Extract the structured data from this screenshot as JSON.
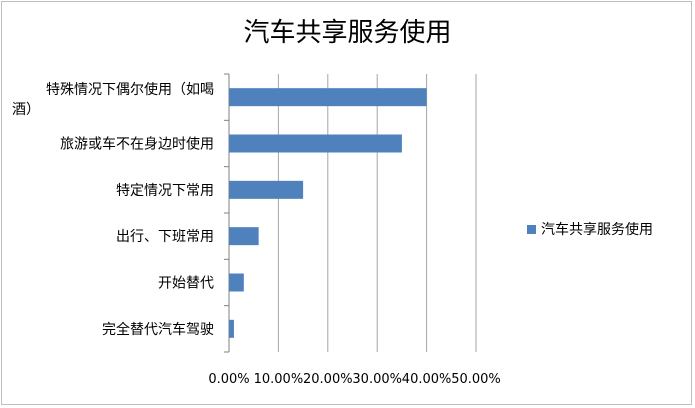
{
  "chart_data": {
    "type": "bar",
    "orientation": "horizontal",
    "title": "汽车共享服务使用",
    "categories": [
      "特殊情况下偶尔使用（如喝酒）",
      "旅游或车不在身边时使用",
      "特定情况下常用",
      "出行、下班常用",
      "开始替代",
      "完全替代汽车驾驶"
    ],
    "category_lines": [
      [
        "特殊情况下偶尔使用（如喝",
        "酒）"
      ],
      [
        "旅游或车不在身边时使用"
      ],
      [
        "特定情况下常用"
      ],
      [
        "出行、下班常用"
      ],
      [
        "开始替代"
      ],
      [
        "完全替代汽车驾驶"
      ]
    ],
    "series": [
      {
        "name": "汽车共享服务使用",
        "values": [
          0.4,
          0.35,
          0.15,
          0.06,
          0.03,
          0.01
        ],
        "color": "#4f81bd"
      }
    ],
    "xlim": [
      0,
      0.5
    ],
    "xticks": [
      0,
      0.1,
      0.2,
      0.3,
      0.4,
      0.5
    ],
    "xtick_labels": [
      "0.00%",
      "10.00%",
      "20.00%",
      "30.00%",
      "40.00%",
      "50.00%"
    ],
    "gridlines": "vertical",
    "legend": {
      "position": "right",
      "entries": [
        "汽车共享服务使用"
      ]
    }
  }
}
